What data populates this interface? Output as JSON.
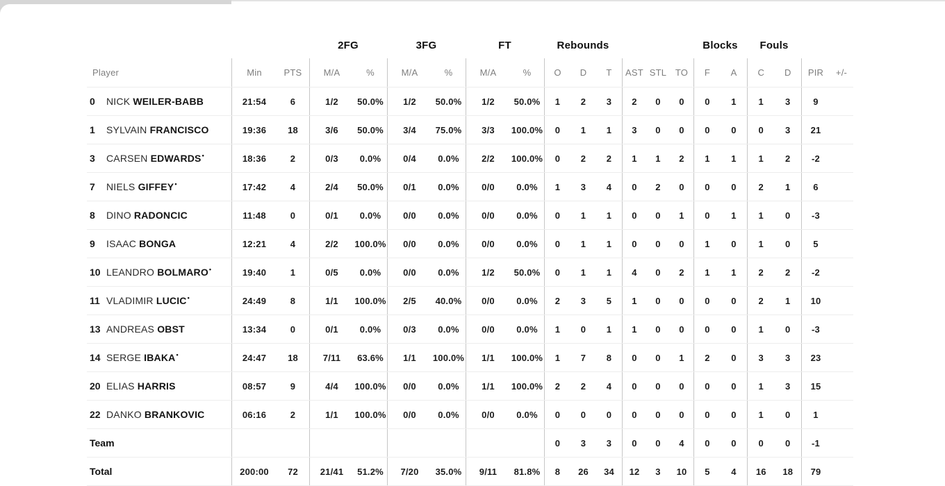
{
  "table": {
    "group_headers": {
      "fg2": "2FG",
      "fg3": "3FG",
      "ft": "FT",
      "rebounds": "Rebounds",
      "blocks": "Blocks",
      "fouls": "Fouls"
    },
    "sub_headers": {
      "player": "Player",
      "min": "Min",
      "pts": "PTS",
      "ma": "M/A",
      "pct": "%",
      "reb_o": "O",
      "reb_d": "D",
      "reb_t": "T",
      "ast": "AST",
      "stl": "STL",
      "to": "TO",
      "blk_f": "F",
      "blk_a": "A",
      "foul_c": "C",
      "foul_d": "D",
      "pir": "PIR",
      "plus_minus": "+/-"
    },
    "starter_mark": "•",
    "rows": [
      {
        "num": "0",
        "first": "NICK",
        "last": "WEILER-BABB",
        "starter": false,
        "min": "21:54",
        "pts": "6",
        "fg2_ma": "1/2",
        "fg2_pct": "50.0%",
        "fg3_ma": "1/2",
        "fg3_pct": "50.0%",
        "ft_ma": "1/2",
        "ft_pct": "50.0%",
        "reb_o": "1",
        "reb_d": "2",
        "reb_t": "3",
        "ast": "2",
        "stl": "0",
        "to": "0",
        "blk_f": "0",
        "blk_a": "1",
        "foul_c": "1",
        "foul_d": "3",
        "pir": "9",
        "pm": ""
      },
      {
        "num": "1",
        "first": "SYLVAIN",
        "last": "FRANCISCO",
        "starter": false,
        "min": "19:36",
        "pts": "18",
        "fg2_ma": "3/6",
        "fg2_pct": "50.0%",
        "fg3_ma": "3/4",
        "fg3_pct": "75.0%",
        "ft_ma": "3/3",
        "ft_pct": "100.0%",
        "reb_o": "0",
        "reb_d": "1",
        "reb_t": "1",
        "ast": "3",
        "stl": "0",
        "to": "0",
        "blk_f": "0",
        "blk_a": "0",
        "foul_c": "0",
        "foul_d": "3",
        "pir": "21",
        "pm": ""
      },
      {
        "num": "3",
        "first": "CARSEN",
        "last": "EDWARDS",
        "starter": true,
        "min": "18:36",
        "pts": "2",
        "fg2_ma": "0/3",
        "fg2_pct": "0.0%",
        "fg3_ma": "0/4",
        "fg3_pct": "0.0%",
        "ft_ma": "2/2",
        "ft_pct": "100.0%",
        "reb_o": "0",
        "reb_d": "2",
        "reb_t": "2",
        "ast": "1",
        "stl": "1",
        "to": "2",
        "blk_f": "1",
        "blk_a": "1",
        "foul_c": "1",
        "foul_d": "2",
        "pir": "-2",
        "pm": ""
      },
      {
        "num": "7",
        "first": "NIELS",
        "last": "GIFFEY",
        "starter": true,
        "min": "17:42",
        "pts": "4",
        "fg2_ma": "2/4",
        "fg2_pct": "50.0%",
        "fg3_ma": "0/1",
        "fg3_pct": "0.0%",
        "ft_ma": "0/0",
        "ft_pct": "0.0%",
        "reb_o": "1",
        "reb_d": "3",
        "reb_t": "4",
        "ast": "0",
        "stl": "2",
        "to": "0",
        "blk_f": "0",
        "blk_a": "0",
        "foul_c": "2",
        "foul_d": "1",
        "pir": "6",
        "pm": ""
      },
      {
        "num": "8",
        "first": "DINO",
        "last": "RADONCIC",
        "starter": false,
        "min": "11:48",
        "pts": "0",
        "fg2_ma": "0/1",
        "fg2_pct": "0.0%",
        "fg3_ma": "0/0",
        "fg3_pct": "0.0%",
        "ft_ma": "0/0",
        "ft_pct": "0.0%",
        "reb_o": "0",
        "reb_d": "1",
        "reb_t": "1",
        "ast": "0",
        "stl": "0",
        "to": "1",
        "blk_f": "0",
        "blk_a": "1",
        "foul_c": "1",
        "foul_d": "0",
        "pir": "-3",
        "pm": ""
      },
      {
        "num": "9",
        "first": "ISAAC",
        "last": "BONGA",
        "starter": false,
        "min": "12:21",
        "pts": "4",
        "fg2_ma": "2/2",
        "fg2_pct": "100.0%",
        "fg3_ma": "0/0",
        "fg3_pct": "0.0%",
        "ft_ma": "0/0",
        "ft_pct": "0.0%",
        "reb_o": "0",
        "reb_d": "1",
        "reb_t": "1",
        "ast": "0",
        "stl": "0",
        "to": "0",
        "blk_f": "1",
        "blk_a": "0",
        "foul_c": "1",
        "foul_d": "0",
        "pir": "5",
        "pm": ""
      },
      {
        "num": "10",
        "first": "LEANDRO",
        "last": "BOLMARO",
        "starter": true,
        "min": "19:40",
        "pts": "1",
        "fg2_ma": "0/5",
        "fg2_pct": "0.0%",
        "fg3_ma": "0/0",
        "fg3_pct": "0.0%",
        "ft_ma": "1/2",
        "ft_pct": "50.0%",
        "reb_o": "0",
        "reb_d": "1",
        "reb_t": "1",
        "ast": "4",
        "stl": "0",
        "to": "2",
        "blk_f": "1",
        "blk_a": "1",
        "foul_c": "2",
        "foul_d": "2",
        "pir": "-2",
        "pm": ""
      },
      {
        "num": "11",
        "first": "VLADIMIR",
        "last": "LUCIC",
        "starter": true,
        "min": "24:49",
        "pts": "8",
        "fg2_ma": "1/1",
        "fg2_pct": "100.0%",
        "fg3_ma": "2/5",
        "fg3_pct": "40.0%",
        "ft_ma": "0/0",
        "ft_pct": "0.0%",
        "reb_o": "2",
        "reb_d": "3",
        "reb_t": "5",
        "ast": "1",
        "stl": "0",
        "to": "0",
        "blk_f": "0",
        "blk_a": "0",
        "foul_c": "2",
        "foul_d": "1",
        "pir": "10",
        "pm": ""
      },
      {
        "num": "13",
        "first": "ANDREAS",
        "last": "OBST",
        "starter": false,
        "min": "13:34",
        "pts": "0",
        "fg2_ma": "0/1",
        "fg2_pct": "0.0%",
        "fg3_ma": "0/3",
        "fg3_pct": "0.0%",
        "ft_ma": "0/0",
        "ft_pct": "0.0%",
        "reb_o": "1",
        "reb_d": "0",
        "reb_t": "1",
        "ast": "1",
        "stl": "0",
        "to": "0",
        "blk_f": "0",
        "blk_a": "0",
        "foul_c": "1",
        "foul_d": "0",
        "pir": "-3",
        "pm": ""
      },
      {
        "num": "14",
        "first": "SERGE",
        "last": "IBAKA",
        "starter": true,
        "min": "24:47",
        "pts": "18",
        "fg2_ma": "7/11",
        "fg2_pct": "63.6%",
        "fg3_ma": "1/1",
        "fg3_pct": "100.0%",
        "ft_ma": "1/1",
        "ft_pct": "100.0%",
        "reb_o": "1",
        "reb_d": "7",
        "reb_t": "8",
        "ast": "0",
        "stl": "0",
        "to": "1",
        "blk_f": "2",
        "blk_a": "0",
        "foul_c": "3",
        "foul_d": "3",
        "pir": "23",
        "pm": ""
      },
      {
        "num": "20",
        "first": "ELIAS",
        "last": "HARRIS",
        "starter": false,
        "min": "08:57",
        "pts": "9",
        "fg2_ma": "4/4",
        "fg2_pct": "100.0%",
        "fg3_ma": "0/0",
        "fg3_pct": "0.0%",
        "ft_ma": "1/1",
        "ft_pct": "100.0%",
        "reb_o": "2",
        "reb_d": "2",
        "reb_t": "4",
        "ast": "0",
        "stl": "0",
        "to": "0",
        "blk_f": "0",
        "blk_a": "0",
        "foul_c": "1",
        "foul_d": "3",
        "pir": "15",
        "pm": ""
      },
      {
        "num": "22",
        "first": "DANKO",
        "last": "BRANKOVIC",
        "starter": false,
        "min": "06:16",
        "pts": "2",
        "fg2_ma": "1/1",
        "fg2_pct": "100.0%",
        "fg3_ma": "0/0",
        "fg3_pct": "0.0%",
        "ft_ma": "0/0",
        "ft_pct": "0.0%",
        "reb_o": "0",
        "reb_d": "0",
        "reb_t": "0",
        "ast": "0",
        "stl": "0",
        "to": "0",
        "blk_f": "0",
        "blk_a": "0",
        "foul_c": "1",
        "foul_d": "0",
        "pir": "1",
        "pm": ""
      },
      {
        "label": "Team",
        "min": "",
        "pts": "",
        "fg2_ma": "",
        "fg2_pct": "",
        "fg3_ma": "",
        "fg3_pct": "",
        "ft_ma": "",
        "ft_pct": "",
        "reb_o": "0",
        "reb_d": "3",
        "reb_t": "3",
        "ast": "0",
        "stl": "0",
        "to": "4",
        "blk_f": "0",
        "blk_a": "0",
        "foul_c": "0",
        "foul_d": "0",
        "pir": "-1",
        "pm": ""
      },
      {
        "label": "Total",
        "min": "200:00",
        "pts": "72",
        "fg2_ma": "21/41",
        "fg2_pct": "51.2%",
        "fg3_ma": "7/20",
        "fg3_pct": "35.0%",
        "ft_ma": "9/11",
        "ft_pct": "81.8%",
        "reb_o": "8",
        "reb_d": "26",
        "reb_t": "34",
        "ast": "12",
        "stl": "3",
        "to": "10",
        "blk_f": "5",
        "blk_a": "4",
        "foul_c": "16",
        "foul_d": "18",
        "pir": "79",
        "pm": ""
      }
    ]
  },
  "colors": {
    "divider": "#c6c6c6",
    "row_line": "#ededed",
    "sub_header_text": "#7e7e7e",
    "text": "#1d1d1d",
    "top_bar": "#d6d6d6"
  }
}
